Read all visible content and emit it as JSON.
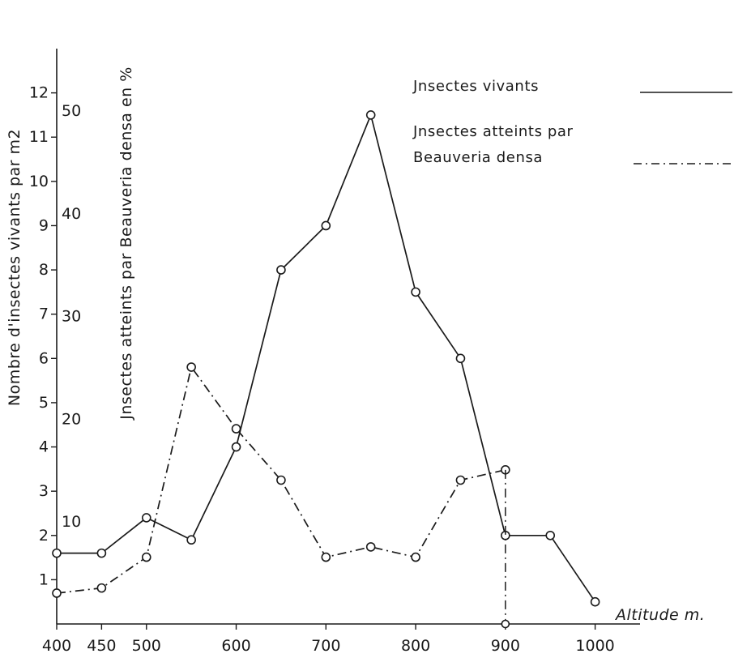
{
  "chart_data": {
    "type": "line",
    "title": "",
    "xlabel": "Altitude m.",
    "ylabel_left": "Nombre d'insectes vivants par m2",
    "ylabel_right": "Jnsectes atteints par Beauveria densa en %",
    "x_ticks": [
      "400",
      "450",
      "500",
      "600",
      "700",
      "800",
      "900",
      "1000"
    ],
    "y_left_ticks": [
      "1",
      "2",
      "3",
      "4",
      "5",
      "6",
      "7",
      "8",
      "9",
      "10",
      "11",
      "12"
    ],
    "y_right_ticks": [
      "10",
      "20",
      "30",
      "40",
      "50"
    ],
    "xlim": [
      400,
      1050
    ],
    "ylim_left": [
      0,
      13
    ],
    "ylim_right": [
      0,
      56
    ],
    "grid": false,
    "legend_position": "top-right",
    "series": [
      {
        "name": "Jnsectes vivants",
        "axis": "left",
        "style": "solid",
        "x": [
          400,
          450,
          500,
          550,
          600,
          650,
          700,
          750,
          800,
          850,
          900,
          950,
          1000
        ],
        "values": [
          1.6,
          1.6,
          2.4,
          1.9,
          4.0,
          8.0,
          9.0,
          11.5,
          7.5,
          6.0,
          2.0,
          2.0,
          0.5
        ]
      },
      {
        "name": "Jnsectes atteints par Beauveria densa",
        "legend_lines": [
          "Jnsectes atteints par",
          "Beauveria densa"
        ],
        "axis": "right",
        "style": "dash-dot",
        "x": [
          400,
          450,
          500,
          550,
          600,
          650,
          700,
          750,
          800,
          850,
          900
        ],
        "values": [
          3,
          3.5,
          6.5,
          25,
          19,
          14,
          6.5,
          7.5,
          6.5,
          14,
          15
        ]
      }
    ]
  }
}
